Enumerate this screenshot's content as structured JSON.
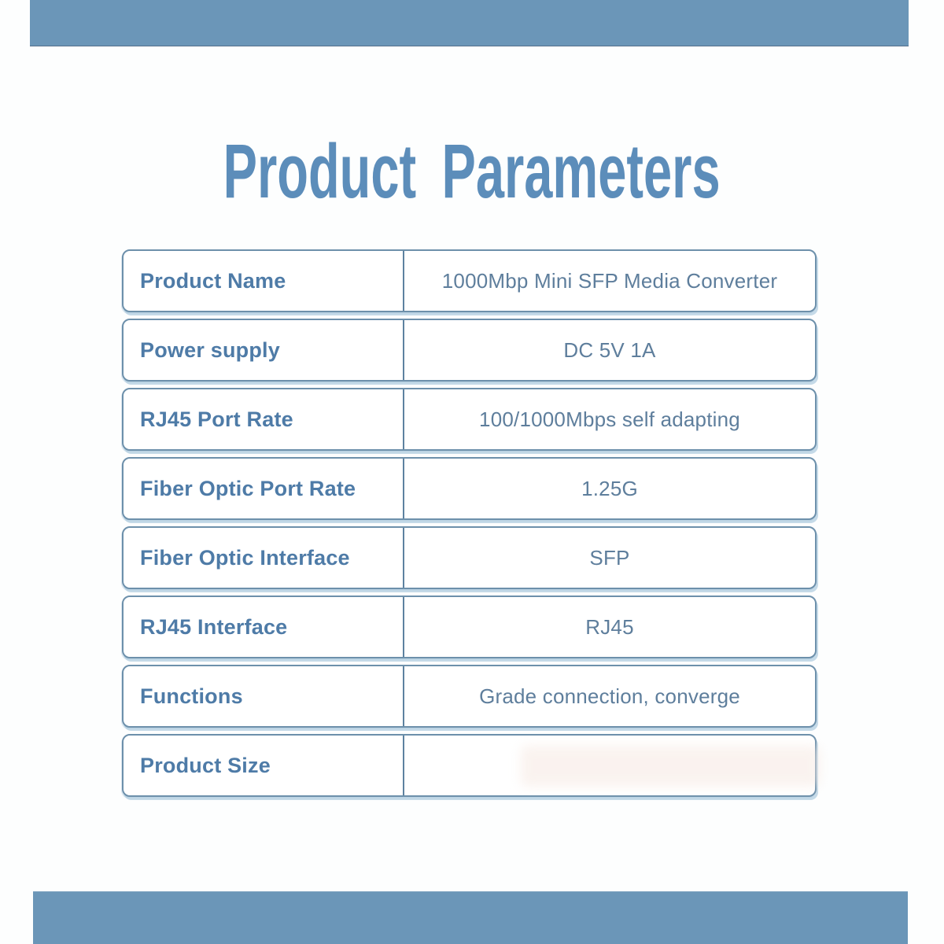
{
  "page": {
    "title": "Product Parameters"
  },
  "colors": {
    "bar_blue": "#6b96b8",
    "title_blue": "#5c8dba",
    "label_blue": "#4e7ba7",
    "value_blue": "#5e7e9c",
    "row_border_blue": "#6d90ab",
    "divider_blue": "#5d82a0",
    "row_shadow_blue": "#b2cde0"
  },
  "table": {
    "rows": [
      {
        "label": "Product Name",
        "value": "1000Mbp Mini SFP Media Converter"
      },
      {
        "label": "Power supply",
        "value": "DC 5V 1A"
      },
      {
        "label": "RJ45 Port Rate",
        "value": "100/1000Mbps self adapting"
      },
      {
        "label": "Fiber Optic Port Rate",
        "value": "1.25G"
      },
      {
        "label": "Fiber Optic Interface",
        "value": "SFP"
      },
      {
        "label": "RJ45 Interface",
        "value": "RJ45"
      },
      {
        "label": "Functions",
        "value": "Grade connection, converge"
      },
      {
        "label": "Product Size",
        "value": ""
      }
    ]
  }
}
